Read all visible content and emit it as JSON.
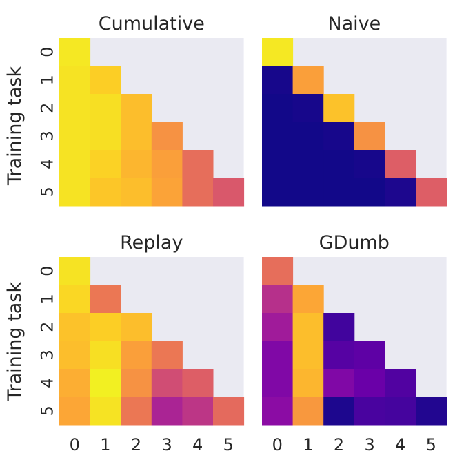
{
  "figure": {
    "ylabel": "Training task",
    "background_color": "#eaeaf2",
    "colormap": "plasma"
  },
  "chart_data": [
    {
      "type": "heatmap",
      "title": "Cumulative",
      "rows": [
        "0",
        "1",
        "2",
        "3",
        "4",
        "5"
      ],
      "cols": [
        "0",
        "1",
        "2",
        "3",
        "4",
        "5"
      ],
      "value_range": [
        0,
        1
      ],
      "values": [
        [
          0.96,
          null,
          null,
          null,
          null,
          null
        ],
        [
          0.95,
          0.9,
          null,
          null,
          null,
          null
        ],
        [
          0.95,
          0.94,
          0.86,
          null,
          null,
          null
        ],
        [
          0.95,
          0.94,
          0.86,
          0.74,
          null,
          null
        ],
        [
          0.95,
          0.91,
          0.84,
          0.78,
          0.63,
          null
        ],
        [
          0.95,
          0.88,
          0.86,
          0.79,
          0.63,
          0.56
        ]
      ]
    },
    {
      "type": "heatmap",
      "title": "Naive",
      "rows": [
        "0",
        "1",
        "2",
        "3",
        "4",
        "5"
      ],
      "cols": [
        "0",
        "1",
        "2",
        "3",
        "4",
        "5"
      ],
      "value_range": [
        0,
        1
      ],
      "values": [
        [
          0.96,
          null,
          null,
          null,
          null,
          null
        ],
        [
          0.02,
          0.78,
          null,
          null,
          null,
          null
        ],
        [
          0.01,
          0.02,
          0.87,
          null,
          null,
          null
        ],
        [
          0.01,
          0.01,
          0.02,
          0.74,
          null,
          null
        ],
        [
          0.01,
          0.01,
          0.01,
          0.02,
          0.58,
          null
        ],
        [
          0.01,
          0.01,
          0.01,
          0.01,
          0.03,
          0.58
        ]
      ]
    },
    {
      "type": "heatmap",
      "title": "Replay",
      "rows": [
        "0",
        "1",
        "2",
        "3",
        "4",
        "5"
      ],
      "cols": [
        "0",
        "1",
        "2",
        "3",
        "4",
        "5"
      ],
      "value_range": [
        0,
        1
      ],
      "values": [
        [
          0.95,
          null,
          null,
          null,
          null,
          null
        ],
        [
          0.92,
          0.66,
          null,
          null,
          null,
          null
        ],
        [
          0.87,
          0.9,
          0.86,
          null,
          null,
          null
        ],
        [
          0.86,
          0.94,
          0.78,
          0.66,
          null,
          null
        ],
        [
          0.82,
          0.98,
          0.74,
          0.52,
          0.58,
          null
        ],
        [
          0.8,
          0.95,
          0.66,
          0.38,
          0.44,
          0.62
        ]
      ]
    },
    {
      "type": "heatmap",
      "title": "GDumb",
      "rows": [
        "0",
        "1",
        "2",
        "3",
        "4",
        "5"
      ],
      "cols": [
        "0",
        "1",
        "2",
        "3",
        "4",
        "5"
      ],
      "value_range": [
        0,
        1
      ],
      "values": [
        [
          0.63,
          null,
          null,
          null,
          null,
          null
        ],
        [
          0.42,
          0.8,
          null,
          null,
          null,
          null
        ],
        [
          0.35,
          0.86,
          0.1,
          null,
          null,
          null
        ],
        [
          0.26,
          0.86,
          0.15,
          0.17,
          null,
          null
        ],
        [
          0.26,
          0.84,
          0.26,
          0.2,
          0.14,
          null
        ],
        [
          0.29,
          0.76,
          0.03,
          0.12,
          0.11,
          0.04
        ]
      ]
    }
  ]
}
